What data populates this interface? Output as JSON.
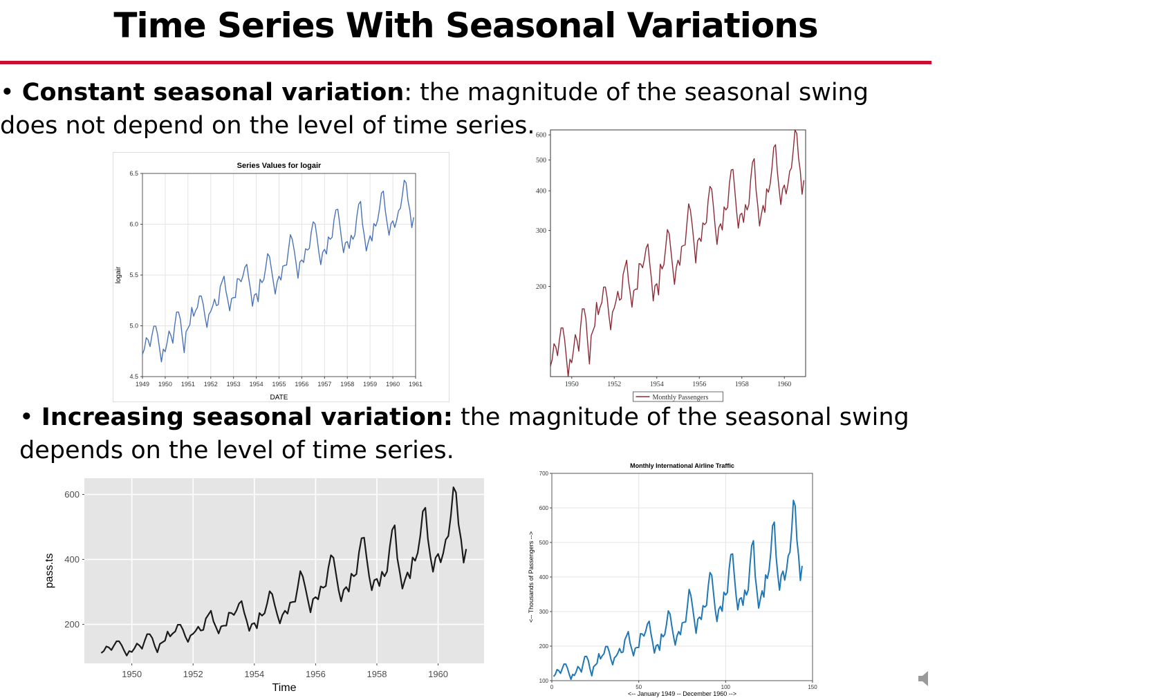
{
  "slide": {
    "title": "Time Series With Seasonal Variations",
    "bullet1": {
      "marker": "•",
      "term": "Constant seasonal variation",
      "sep": ":",
      "text": " the magnitude of the seasonal swing does not depend on the level of time series."
    },
    "bullet2": {
      "marker": "•",
      "term": "Increasing seasonal variation:",
      "text": " the magnitude of the seasonal swing depends on the level of time series."
    },
    "accent_color": "#c8102e"
  },
  "airline_monthly": [
    112,
    118,
    132,
    129,
    121,
    135,
    148,
    148,
    136,
    119,
    104,
    118,
    115,
    126,
    141,
    135,
    125,
    149,
    170,
    170,
    158,
    133,
    114,
    140,
    145,
    150,
    178,
    163,
    172,
    178,
    199,
    199,
    184,
    162,
    146,
    166,
    171,
    180,
    193,
    181,
    183,
    218,
    230,
    242,
    209,
    191,
    172,
    194,
    196,
    196,
    236,
    235,
    229,
    243,
    264,
    272,
    237,
    211,
    180,
    201,
    204,
    188,
    235,
    227,
    234,
    264,
    302,
    293,
    259,
    229,
    203,
    229,
    242,
    233,
    267,
    269,
    270,
    315,
    364,
    347,
    312,
    274,
    237,
    278,
    284,
    277,
    317,
    313,
    318,
    374,
    413,
    405,
    355,
    306,
    271,
    306,
    315,
    301,
    356,
    348,
    355,
    422,
    465,
    467,
    404,
    347,
    305,
    336,
    340,
    318,
    362,
    348,
    363,
    435,
    491,
    505,
    404,
    359,
    310,
    337,
    360,
    342,
    406,
    396,
    420,
    472,
    548,
    559,
    463,
    407,
    362,
    405,
    417,
    391,
    419,
    461,
    472,
    535,
    622,
    606,
    508,
    461,
    390,
    432
  ],
  "chart_data": [
    {
      "type": "line",
      "title": "Series Values for logair",
      "xlabel": "DATE",
      "ylabel": "logair",
      "x_start": 1949,
      "x_end": 1961,
      "xticks": [
        "1949",
        "1950",
        "1951",
        "1952",
        "1953",
        "1954",
        "1955",
        "1956",
        "1957",
        "1958",
        "1959",
        "1960",
        "1961"
      ],
      "yticks": [
        "4.5",
        "5.0",
        "5.5",
        "6.0",
        "6.5"
      ],
      "ylim": [
        4.5,
        6.5
      ],
      "transform": "log",
      "series_ref": "airline_monthly",
      "color": "#4a72b8",
      "grid": true
    },
    {
      "type": "line",
      "title": "",
      "xlabel": "",
      "ylabel": "",
      "x_start": 1949,
      "x_end": 1961,
      "xlim": [
        1949,
        1961
      ],
      "xticks": [
        "1950",
        "1952",
        "1954",
        "1956",
        "1958",
        "1960"
      ],
      "yticks": [
        "200",
        "300",
        "400",
        "500",
        "600"
      ],
      "ylim": [
        104,
        622
      ],
      "y_scale": "log",
      "series_ref": "airline_monthly",
      "legend": "Monthly Passengers",
      "legend_position": "bottom",
      "color": "#8b2a35",
      "grid": false
    },
    {
      "type": "line",
      "title": "",
      "xlabel": "Time",
      "ylabel": "pass.ts",
      "x_start": 1949,
      "x_end": 1961,
      "xlim": [
        1948.45,
        1961.5
      ],
      "xticks": [
        "1950",
        "1952",
        "1954",
        "1956",
        "1958",
        "1960"
      ],
      "yticks": [
        "200",
        "400",
        "600"
      ],
      "ylim": [
        80,
        650
      ],
      "series_ref": "airline_monthly",
      "color": "#1a1a1a",
      "grid": true,
      "background": "#e5e5e5"
    },
    {
      "type": "line",
      "title": "Monthly International Airline Traffic",
      "xlabel": "<-- January 1949 -- December 1960 -->",
      "ylabel": "<-- Thousands of Passengers -->",
      "x_index": true,
      "xticks": [
        "0",
        "50",
        "100",
        "150"
      ],
      "xlim": [
        0,
        150
      ],
      "yticks": [
        "100",
        "200",
        "300",
        "400",
        "500",
        "600",
        "700"
      ],
      "ylim": [
        100,
        700
      ],
      "series_ref": "airline_monthly",
      "color": "#1f77b4",
      "grid": true
    }
  ]
}
